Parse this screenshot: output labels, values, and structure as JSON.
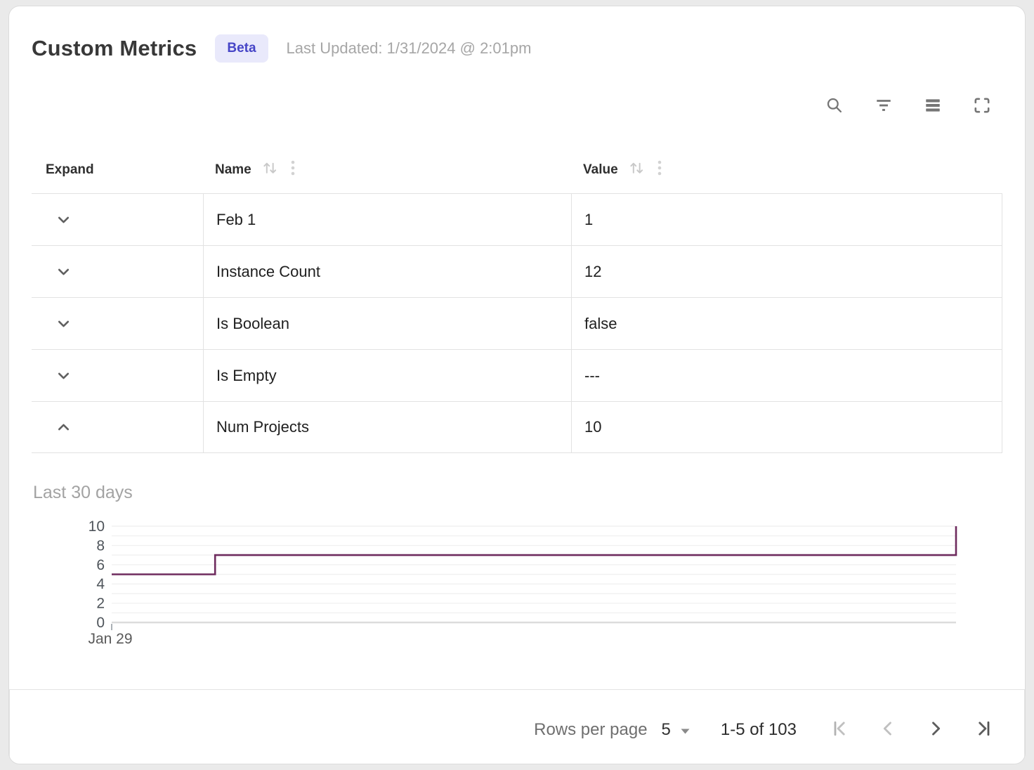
{
  "header": {
    "title": "Custom Metrics",
    "badge": "Beta",
    "last_updated": "Last Updated: 1/31/2024 @ 2:01pm"
  },
  "toolbar": {
    "icons": [
      "search-icon",
      "filter-icon",
      "density-icon",
      "fullscreen-icon"
    ]
  },
  "table": {
    "columns": [
      {
        "label": "Expand",
        "sortable": false
      },
      {
        "label": "Name",
        "sortable": true,
        "menu_icon": "kebab-menu-icon"
      },
      {
        "label": "Value",
        "sortable": true,
        "menu_icon": "kebab-menu-icon"
      }
    ],
    "rows": [
      {
        "name": "Feb 1",
        "value": "1",
        "expanded": false
      },
      {
        "name": "Instance Count",
        "value": "12",
        "expanded": false
      },
      {
        "name": "Is Boolean",
        "value": "false",
        "expanded": false
      },
      {
        "name": "Is Empty",
        "value": "---",
        "expanded": false
      },
      {
        "name": "Num Projects",
        "value": "10",
        "expanded": true
      }
    ]
  },
  "chart_data": {
    "type": "line",
    "subtype": "step",
    "title": "Last 30 days",
    "xticks": [
      "Jan 29"
    ],
    "yticks": [
      10,
      8,
      6,
      4,
      2,
      0
    ],
    "ylim": [
      0,
      10
    ],
    "grid_step": 1,
    "grid": true,
    "legend": false,
    "line_color": "#6e2b5e",
    "x_unit": "fraction-of-axis",
    "points": [
      [
        0,
        5
      ],
      [
        0.1225,
        5
      ],
      [
        0.1225,
        7
      ],
      [
        1,
        7
      ],
      [
        1,
        10
      ]
    ]
  },
  "footer": {
    "rows_per_page_label": "Rows per page",
    "rows_per_page_value": "5",
    "range_label": "1-5 of 103",
    "pagination": {
      "first_enabled": false,
      "prev_enabled": false,
      "next_enabled": true,
      "last_enabled": true
    }
  },
  "colors": {
    "badge_bg": "#e9e9fb",
    "badge_text": "#4645c7",
    "chart_line": "#6e2b5e",
    "gridline": "#f1f1f1",
    "axis_line": "#dcdcdc",
    "icon_gray": "#757575",
    "disabled_icon": "#c0c0c0"
  }
}
